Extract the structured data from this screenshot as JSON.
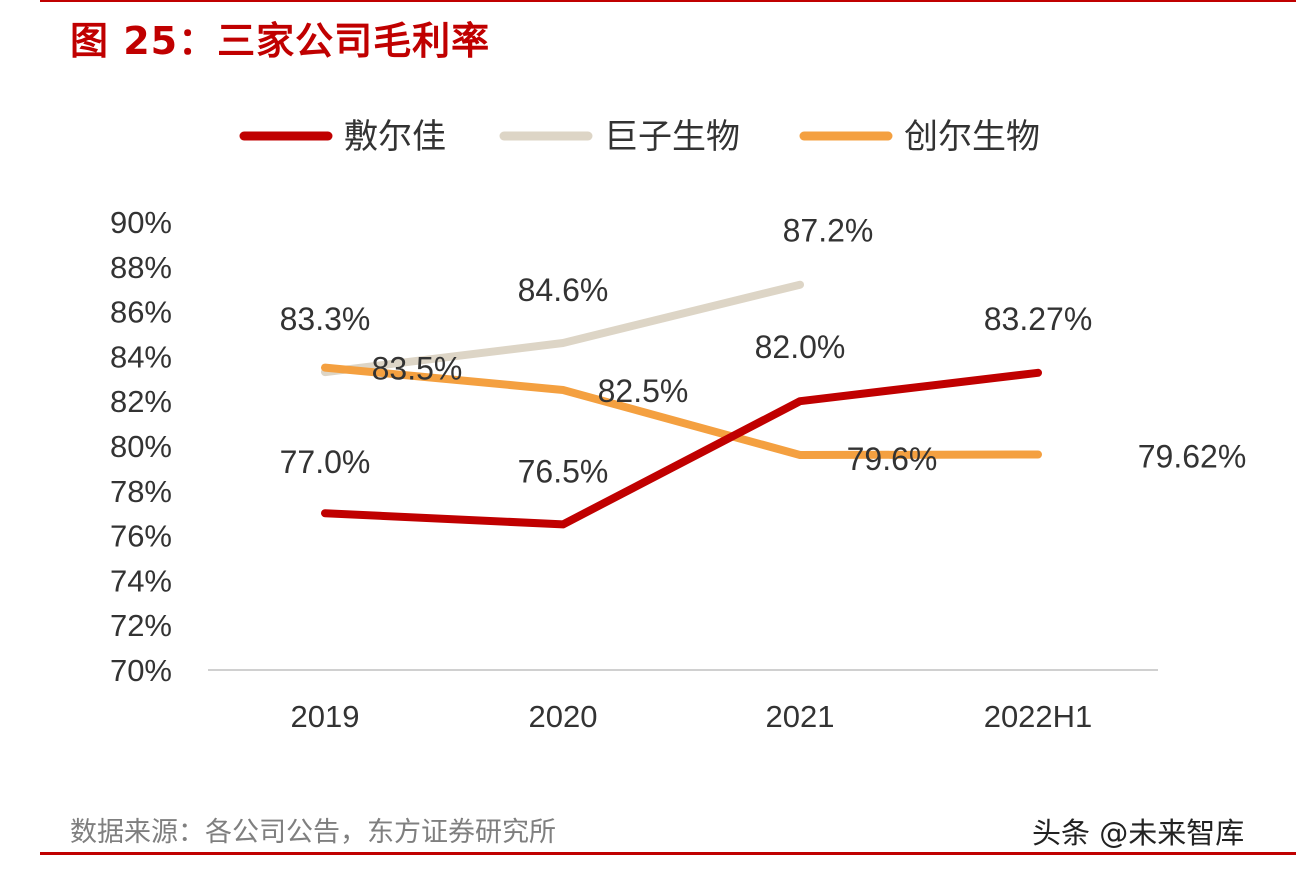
{
  "header": {
    "title": "图 25：三家公司毛利率"
  },
  "footer": {
    "source": "数据来源：各公司公告，东方证券研究所",
    "watermark": "头条 @未来智库"
  },
  "chart_data": {
    "type": "line",
    "title": "",
    "xlabel": "",
    "ylabel": "",
    "categories": [
      "2019",
      "2020",
      "2021",
      "2022H1"
    ],
    "y_ticks": [
      "70%",
      "72%",
      "74%",
      "76%",
      "78%",
      "80%",
      "82%",
      "84%",
      "86%",
      "88%",
      "90%"
    ],
    "ylim": [
      70,
      90
    ],
    "grid": false,
    "legend_position": "top",
    "series": [
      {
        "name": "敷尔佳",
        "color": "#c00000",
        "values": [
          77.0,
          76.5,
          82.0,
          83.27
        ],
        "labels": [
          "77.0%",
          "76.5%",
          "82.0%",
          "83.27%"
        ]
      },
      {
        "name": "巨子生物",
        "color": "#ddd5c6",
        "values": [
          83.3,
          84.6,
          87.2,
          null
        ],
        "labels": [
          "83.3%",
          "84.6%",
          "87.2%",
          null
        ]
      },
      {
        "name": "创尔生物",
        "color": "#f4a040",
        "values": [
          83.5,
          82.5,
          79.6,
          79.62
        ],
        "labels": [
          "83.5%",
          "82.5%",
          "79.6%",
          "79.62%"
        ]
      }
    ]
  }
}
